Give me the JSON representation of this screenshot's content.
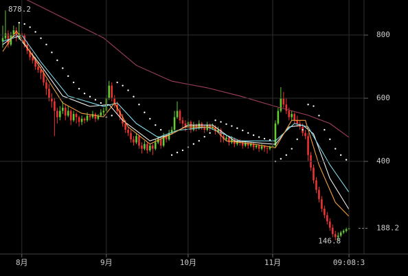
{
  "chart_data": {
    "type": "candlestick",
    "up_color": "#66cc33",
    "down_color": "#ee3333",
    "xlim": [
      -1,
      130.5
    ],
    "ylim": [
      111,
      911
    ],
    "grid": true,
    "xticks": [
      {
        "value": 7,
        "label": "8月"
      },
      {
        "value": 38,
        "label": "9月"
      },
      {
        "value": 68,
        "label": "10月"
      },
      {
        "value": 99,
        "label": "11月"
      },
      {
        "value": 127,
        "label": "09:08:3"
      }
    ],
    "yticks": [
      400,
      600,
      800
    ],
    "last_price": 188.2,
    "annotations": [
      {
        "x": 1,
        "value": 878.2
      },
      {
        "x": 123,
        "value": 146.8
      }
    ],
    "ohlc": [
      [
        780,
        830,
        760,
        790
      ],
      [
        790,
        878.2,
        785,
        805
      ],
      [
        805,
        815,
        760,
        770
      ],
      [
        770,
        810,
        765,
        800
      ],
      [
        800,
        830,
        795,
        815
      ],
      [
        815,
        825,
        780,
        790
      ],
      [
        790,
        840,
        785,
        805
      ],
      [
        805,
        812,
        790,
        800
      ],
      [
        800,
        805,
        760,
        770
      ],
      [
        770,
        780,
        740,
        750
      ],
      [
        750,
        760,
        720,
        730
      ],
      [
        730,
        745,
        710,
        720
      ],
      [
        720,
        730,
        690,
        700
      ],
      [
        700,
        715,
        680,
        690
      ],
      [
        690,
        700,
        660,
        680
      ],
      [
        680,
        690,
        640,
        650
      ],
      [
        650,
        660,
        610,
        630
      ],
      [
        630,
        645,
        590,
        600
      ],
      [
        600,
        615,
        570,
        590
      ],
      [
        590,
        600,
        480,
        560
      ],
      [
        560,
        570,
        520,
        540
      ],
      [
        540,
        575,
        530,
        560
      ],
      [
        560,
        590,
        550,
        570
      ],
      [
        570,
        580,
        530,
        545
      ],
      [
        545,
        575,
        540,
        560
      ],
      [
        560,
        565,
        515,
        530
      ],
      [
        530,
        560,
        525,
        550
      ],
      [
        550,
        555,
        520,
        540
      ],
      [
        540,
        545,
        510,
        525
      ],
      [
        525,
        545,
        515,
        535
      ],
      [
        535,
        540,
        520,
        530
      ],
      [
        530,
        555,
        525,
        545
      ],
      [
        545,
        550,
        530,
        540
      ],
      [
        540,
        560,
        535,
        550
      ],
      [
        550,
        555,
        525,
        535
      ],
      [
        535,
        550,
        530,
        545
      ],
      [
        545,
        565,
        540,
        555
      ],
      [
        555,
        570,
        545,
        560
      ],
      [
        560,
        610,
        555,
        600
      ],
      [
        600,
        655,
        595,
        640
      ],
      [
        640,
        650,
        590,
        600
      ],
      [
        600,
        610,
        570,
        580
      ],
      [
        580,
        590,
        550,
        560
      ],
      [
        560,
        570,
        530,
        540
      ],
      [
        540,
        550,
        510,
        520
      ],
      [
        520,
        530,
        490,
        500
      ],
      [
        500,
        510,
        480,
        490
      ],
      [
        490,
        500,
        460,
        470
      ],
      [
        470,
        480,
        450,
        460
      ],
      [
        460,
        490,
        455,
        480
      ],
      [
        480,
        485,
        440,
        450
      ],
      [
        450,
        460,
        425,
        440
      ],
      [
        440,
        465,
        435,
        455
      ],
      [
        455,
        460,
        425,
        435
      ],
      [
        435,
        455,
        430,
        450
      ],
      [
        450,
        455,
        420,
        440
      ],
      [
        440,
        470,
        435,
        460
      ],
      [
        460,
        480,
        455,
        470
      ],
      [
        470,
        475,
        440,
        450
      ],
      [
        450,
        490,
        445,
        480
      ],
      [
        480,
        485,
        460,
        470
      ],
      [
        470,
        500,
        465,
        490
      ],
      [
        490,
        510,
        485,
        500
      ],
      [
        500,
        560,
        495,
        540
      ],
      [
        540,
        590,
        535,
        560
      ],
      [
        560,
        565,
        520,
        530
      ],
      [
        530,
        540,
        505,
        520
      ],
      [
        520,
        530,
        495,
        510
      ],
      [
        510,
        535,
        505,
        525
      ],
      [
        525,
        530,
        490,
        500
      ],
      [
        500,
        525,
        495,
        515
      ],
      [
        515,
        520,
        495,
        505
      ],
      [
        505,
        530,
        500,
        520
      ],
      [
        520,
        525,
        500,
        510
      ],
      [
        510,
        515,
        490,
        500
      ],
      [
        500,
        525,
        495,
        515
      ],
      [
        515,
        520,
        495,
        505
      ],
      [
        505,
        520,
        500,
        510
      ],
      [
        510,
        515,
        485,
        495
      ],
      [
        495,
        510,
        490,
        500
      ],
      [
        500,
        505,
        460,
        480
      ],
      [
        480,
        485,
        460,
        470
      ],
      [
        470,
        485,
        465,
        475
      ],
      [
        475,
        480,
        450,
        460
      ],
      [
        460,
        480,
        455,
        470
      ],
      [
        470,
        475,
        445,
        455
      ],
      [
        455,
        470,
        450,
        465
      ],
      [
        465,
        470,
        450,
        460
      ],
      [
        460,
        465,
        440,
        450
      ],
      [
        450,
        465,
        445,
        458
      ],
      [
        458,
        462,
        440,
        450
      ],
      [
        450,
        460,
        445,
        455
      ],
      [
        455,
        460,
        435,
        445
      ],
      [
        445,
        455,
        440,
        450
      ],
      [
        450,
        455,
        430,
        440
      ],
      [
        440,
        455,
        435,
        448
      ],
      [
        448,
        452,
        430,
        442
      ],
      [
        442,
        448,
        425,
        440
      ],
      [
        440,
        450,
        435,
        445
      ],
      [
        445,
        470,
        440,
        450
      ],
      [
        450,
        530,
        445,
        520
      ],
      [
        520,
        570,
        515,
        560
      ],
      [
        560,
        635,
        555,
        600
      ],
      [
        600,
        620,
        570,
        580
      ],
      [
        580,
        600,
        550,
        560
      ],
      [
        560,
        570,
        530,
        540
      ],
      [
        540,
        560,
        530,
        550
      ],
      [
        550,
        555,
        520,
        530
      ],
      [
        530,
        545,
        510,
        520
      ],
      [
        520,
        530,
        500,
        510
      ],
      [
        510,
        520,
        480,
        490
      ],
      [
        490,
        500,
        470,
        480
      ],
      [
        480,
        490,
        400,
        420
      ],
      [
        420,
        430,
        370,
        380
      ],
      [
        380,
        390,
        330,
        340
      ],
      [
        340,
        350,
        300,
        310
      ],
      [
        310,
        320,
        270,
        280
      ],
      [
        280,
        290,
        240,
        250
      ],
      [
        250,
        260,
        220,
        230
      ],
      [
        230,
        240,
        200,
        210
      ],
      [
        210,
        220,
        180,
        190
      ],
      [
        190,
        200,
        160,
        170
      ],
      [
        170,
        180,
        150,
        160
      ],
      [
        160,
        175,
        146.8,
        165
      ],
      [
        165,
        180,
        160,
        175
      ],
      [
        175,
        185,
        170,
        180
      ],
      [
        180,
        190,
        175,
        185
      ],
      [
        185,
        195,
        180,
        188.2
      ]
    ],
    "series": [
      {
        "color": "#a0405a",
        "x": [
          5,
          9,
          19,
          37,
          49,
          62,
          75,
          87,
          100,
          112,
          120,
          127
        ],
        "values": [
          930,
          911,
          868,
          791,
          704,
          654,
          633,
          607,
          574,
          546,
          520,
          476
        ]
      },
      {
        "color": "#f0f0f0",
        "x": [
          0,
          5,
          14,
          22,
          32,
          39,
          44,
          54,
          62,
          68,
          77,
          85,
          100,
          105,
          110,
          114,
          120,
          127
        ],
        "values": [
          770,
          802,
          704,
          607,
          574,
          580,
          530,
          465,
          487,
          515,
          515,
          465,
          454,
          509,
          515,
          487,
          346,
          248
        ]
      },
      {
        "color": "#80d8e8",
        "x": [
          0,
          7,
          14,
          24,
          37,
          42,
          49,
          57,
          64,
          75,
          87,
          100,
          107,
          112,
          120,
          127
        ],
        "values": [
          780,
          800,
          715,
          607,
          574,
          585,
          520,
          476,
          498,
          509,
          465,
          465,
          520,
          509,
          389,
          302
        ]
      },
      {
        "color": "#f0a040",
        "x": [
          0,
          5,
          14,
          22,
          29,
          37,
          41,
          46,
          54,
          62,
          67,
          77,
          82,
          92,
          100,
          106,
          111,
          116,
          122,
          127
        ],
        "values": [
          748,
          813,
          694,
          585,
          552,
          541,
          585,
          509,
          455,
          487,
          509,
          509,
          465,
          455,
          443,
          530,
          530,
          389,
          270,
          226
        ]
      }
    ],
    "sar": {
      "color": "#ffffff",
      "x": [
        6,
        8,
        10,
        12,
        14,
        16,
        18,
        20,
        22,
        24,
        26,
        28,
        30,
        32,
        34,
        36,
        38,
        40,
        42,
        44,
        46,
        48,
        50,
        52,
        54,
        56,
        58,
        62,
        64,
        66,
        68,
        70,
        72,
        74,
        76,
        78,
        80,
        82,
        84,
        86,
        88,
        90,
        92,
        94,
        96,
        98,
        100,
        102,
        104,
        106,
        108,
        110,
        112,
        114,
        116,
        118,
        120,
        122,
        124,
        126
      ],
      "values": [
        839,
        835,
        825,
        810,
        790,
        770,
        745,
        720,
        695,
        670,
        650,
        630,
        615,
        605,
        595,
        585,
        540,
        545,
        650,
        640,
        625,
        605,
        580,
        555,
        535,
        515,
        500,
        420,
        428,
        435,
        445,
        455,
        465,
        478,
        490,
        530,
        525,
        518,
        512,
        505,
        498,
        490,
        483,
        477,
        472,
        468,
        400,
        408,
        420,
        440,
        470,
        500,
        580,
        575,
        545,
        500,
        470,
        440,
        420,
        405
      ]
    }
  }
}
